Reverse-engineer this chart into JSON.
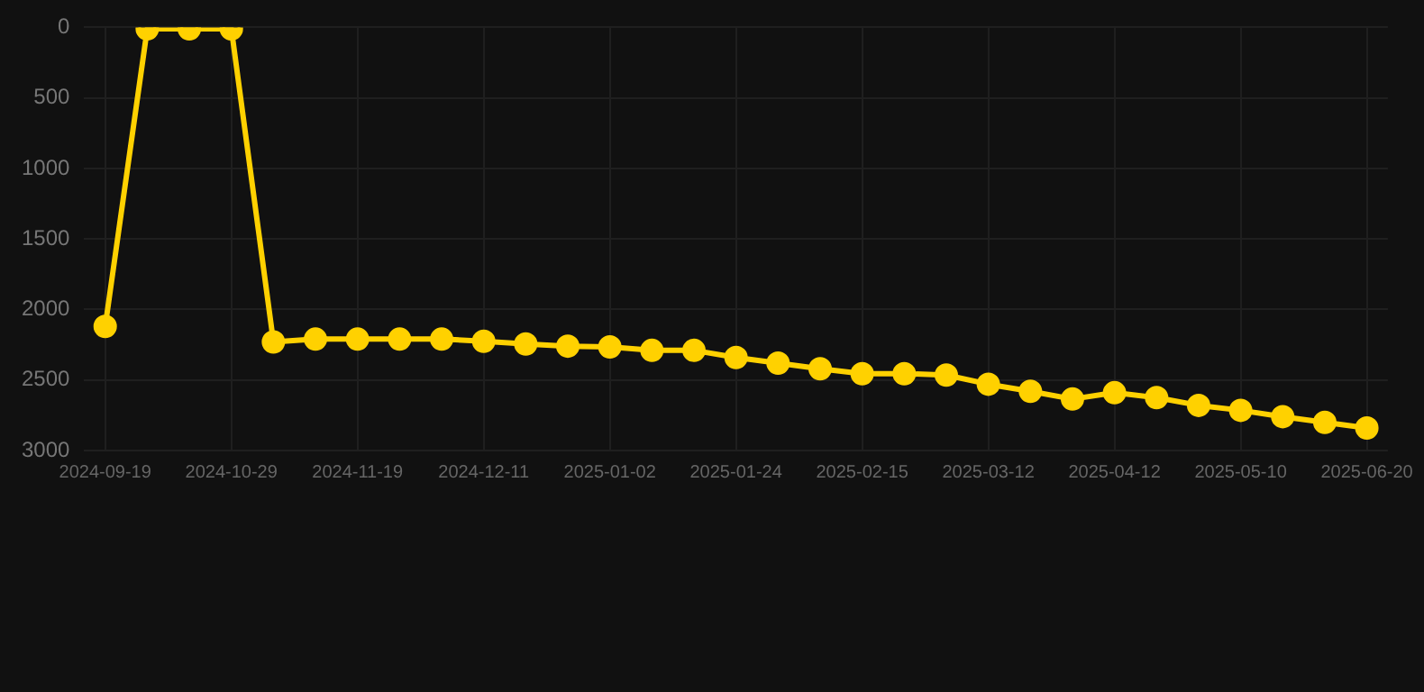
{
  "chart_data": {
    "type": "line",
    "categories": [
      "2024-09-19",
      null,
      null,
      "2024-10-29",
      null,
      null,
      "2024-11-19",
      null,
      null,
      "2024-12-11",
      null,
      null,
      "2025-01-02",
      null,
      null,
      "2025-01-24",
      null,
      null,
      "2025-02-15",
      null,
      null,
      "2025-03-12",
      null,
      null,
      "2025-04-12",
      null,
      null,
      "2025-05-10",
      null,
      null,
      "2025-06-20"
    ],
    "series": [
      {
        "color": "#ffd100",
        "values": [
          2120,
          10,
          10,
          10,
          2230,
          2210,
          2210,
          2210,
          2210,
          2225,
          2245,
          2260,
          2265,
          2290,
          2290,
          2340,
          2380,
          2420,
          2455,
          2455,
          2465,
          2530,
          2580,
          2635,
          2590,
          2625,
          2680,
          2715,
          2760,
          2800,
          2840
        ]
      }
    ],
    "ylim": [
      3000,
      0
    ],
    "yticks": [
      0,
      500,
      1000,
      1500,
      2000,
      2500,
      3000
    ],
    "grid": true,
    "legend": false,
    "marker": "circle",
    "line_style": "solid"
  }
}
